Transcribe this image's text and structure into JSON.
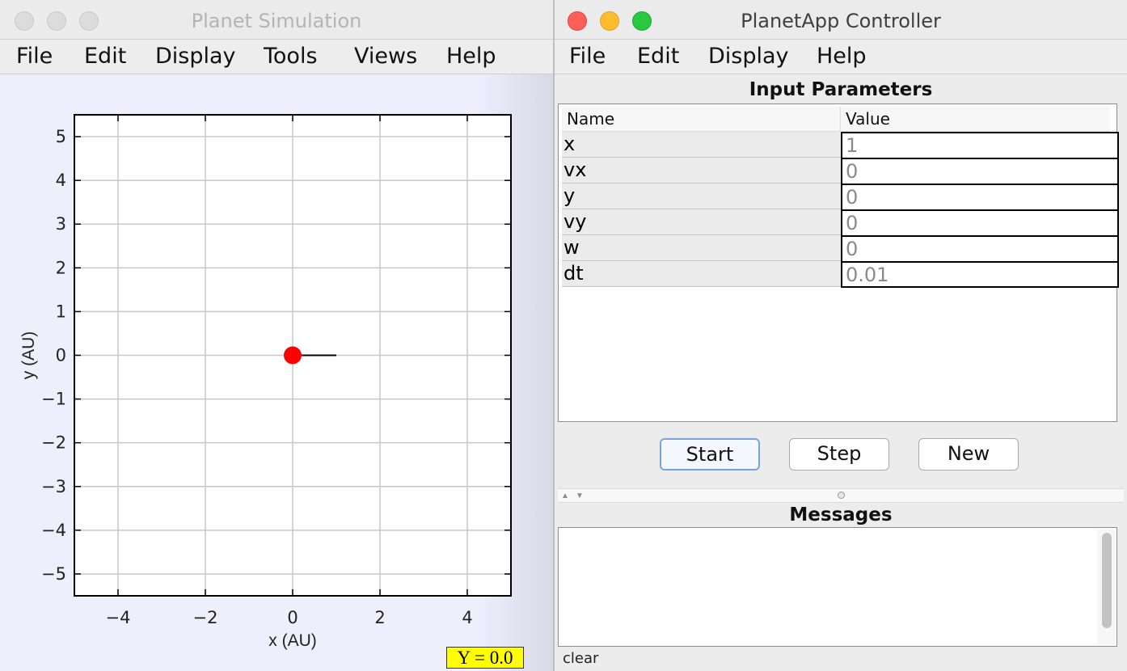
{
  "sim_window": {
    "title": "Planet Simulation",
    "menu": [
      "File",
      "Edit",
      "Display",
      "Tools",
      "Views",
      "Help"
    ],
    "coord_readout": "Y = 0.0"
  },
  "chart_data": {
    "type": "scatter",
    "xlabel": "x (AU)",
    "ylabel": "y (AU)",
    "xlim": [
      -5,
      5
    ],
    "ylim": [
      -5.5,
      5.5
    ],
    "x_ticks": [
      -4,
      -2,
      0,
      2,
      4
    ],
    "y_ticks": [
      -5,
      -4,
      -3,
      -2,
      -1,
      0,
      1,
      2,
      3,
      4,
      5
    ],
    "grid": true,
    "points": [
      {
        "x": 0,
        "y": 0,
        "color": "#ff0000"
      }
    ],
    "trail": [
      {
        "x": 0,
        "y": 0
      },
      {
        "x": 1,
        "y": 0
      }
    ]
  },
  "ctrl_window": {
    "title": "PlanetApp Controller",
    "menu": [
      "File",
      "Edit",
      "Display",
      "Help"
    ],
    "params_title": "Input Parameters",
    "columns": [
      "Name",
      "Value"
    ],
    "params": [
      {
        "name": "x",
        "value": "1"
      },
      {
        "name": "vx",
        "value": "0"
      },
      {
        "name": "y",
        "value": "0"
      },
      {
        "name": "vy",
        "value": "0"
      },
      {
        "name": "w",
        "value": "0"
      },
      {
        "name": "dt",
        "value": "0.01"
      }
    ],
    "buttons": {
      "start": "Start",
      "step": "Step",
      "new": "New"
    },
    "messages_title": "Messages",
    "clear_label": "clear"
  }
}
